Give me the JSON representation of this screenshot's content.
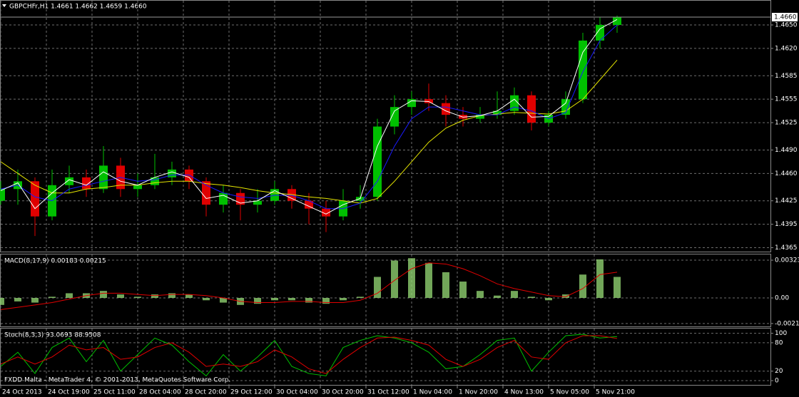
{
  "chart_data": [
    {
      "type": "candlestick",
      "title": "GBPCHFr,H1  1.4661 1.4662 1.4659 1.4660",
      "x": [
        0,
        6,
        12,
        18,
        24,
        30,
        36,
        42,
        48,
        54,
        60,
        66,
        72,
        78,
        84,
        90,
        96,
        102,
        108,
        114,
        120,
        126,
        132,
        138,
        144,
        150,
        156,
        162,
        168,
        174,
        180,
        186,
        192,
        198,
        204,
        210,
        216
      ],
      "candles": [
        [
          1.4425,
          1.445,
          1.442,
          1.444
        ],
        [
          1.444,
          1.4465,
          1.442,
          1.445
        ],
        [
          1.445,
          1.4455,
          1.438,
          1.4405
        ],
        [
          1.4405,
          1.4465,
          1.44,
          1.4445
        ],
        [
          1.4445,
          1.447,
          1.4435,
          1.4455
        ],
        [
          1.4455,
          1.4465,
          1.443,
          1.444
        ],
        [
          1.444,
          1.4495,
          1.4435,
          1.447
        ],
        [
          1.447,
          1.448,
          1.443,
          1.444
        ],
        [
          1.444,
          1.446,
          1.443,
          1.4445
        ],
        [
          1.4445,
          1.4485,
          1.444,
          1.4455
        ],
        [
          1.4455,
          1.4475,
          1.4445,
          1.4465
        ],
        [
          1.4465,
          1.447,
          1.444,
          1.445
        ],
        [
          1.445,
          1.4455,
          1.4405,
          1.442
        ],
        [
          1.442,
          1.4445,
          1.441,
          1.4435
        ],
        [
          1.4435,
          1.444,
          1.44,
          1.442
        ],
        [
          1.442,
          1.444,
          1.441,
          1.4425
        ],
        [
          1.4425,
          1.445,
          1.442,
          1.444
        ],
        [
          1.444,
          1.4445,
          1.4415,
          1.4425
        ],
        [
          1.4425,
          1.4435,
          1.4395,
          1.4415
        ],
        [
          1.4415,
          1.4425,
          1.4385,
          1.4405
        ],
        [
          1.4405,
          1.444,
          1.44,
          1.4425
        ],
        [
          1.4425,
          1.4445,
          1.4415,
          1.443
        ],
        [
          1.443,
          1.453,
          1.4425,
          1.452
        ],
        [
          1.452,
          1.456,
          1.451,
          1.4545
        ],
        [
          1.4545,
          1.4565,
          1.4535,
          1.4555
        ],
        [
          1.4555,
          1.4575,
          1.454,
          1.455
        ],
        [
          1.455,
          1.456,
          1.452,
          1.4535
        ],
        [
          1.4535,
          1.4545,
          1.452,
          1.453
        ],
        [
          1.453,
          1.4545,
          1.4525,
          1.4535
        ],
        [
          1.4535,
          1.4565,
          1.453,
          1.454
        ],
        [
          1.454,
          1.457,
          1.4535,
          1.456
        ],
        [
          1.456,
          1.4565,
          1.4515,
          1.4525
        ],
        [
          1.4525,
          1.454,
          1.452,
          1.4535
        ],
        [
          1.4535,
          1.4565,
          1.453,
          1.4555
        ],
        [
          1.4555,
          1.464,
          1.455,
          1.463
        ],
        [
          1.463,
          1.466,
          1.462,
          1.465
        ],
        [
          1.465,
          1.4662,
          1.464,
          1.466
        ]
      ],
      "up_color": "#00c000",
      "down_color": "#e00000",
      "series": [
        {
          "color": "#e6e600",
          "values": [
            1.4475,
            1.446,
            1.4445,
            1.4435,
            1.4435,
            1.444,
            1.4442,
            1.4445,
            1.4445,
            1.4448,
            1.445,
            1.445,
            1.4447,
            1.4445,
            1.4442,
            1.4438,
            1.4435,
            1.4433,
            1.443,
            1.4428,
            1.4425,
            1.4422,
            1.4428,
            1.445,
            1.4475,
            1.45,
            1.4518,
            1.4528,
            1.4534,
            1.4536,
            1.4538,
            1.4537,
            1.4536,
            1.454,
            1.4555,
            1.458,
            1.4605
          ]
        },
        {
          "color": "#1a1aff",
          "values": [
            1.444,
            1.4445,
            1.443,
            1.4425,
            1.444,
            1.4445,
            1.445,
            1.4455,
            1.445,
            1.4452,
            1.4458,
            1.4458,
            1.4445,
            1.4435,
            1.443,
            1.4428,
            1.4432,
            1.4432,
            1.4425,
            1.4415,
            1.4415,
            1.4422,
            1.445,
            1.4495,
            1.453,
            1.4545,
            1.4545,
            1.454,
            1.4535,
            1.4535,
            1.4545,
            1.454,
            1.453,
            1.4538,
            1.459,
            1.463,
            1.465
          ]
        },
        {
          "color": "#ffffff",
          "values": [
            1.4438,
            1.4448,
            1.4415,
            1.4435,
            1.4452,
            1.4445,
            1.4462,
            1.445,
            1.4445,
            1.4455,
            1.4462,
            1.4455,
            1.4428,
            1.4432,
            1.4422,
            1.4425,
            1.4438,
            1.4428,
            1.4418,
            1.4408,
            1.442,
            1.4428,
            1.4495,
            1.454,
            1.4553,
            1.4552,
            1.454,
            1.4532,
            1.4534,
            1.454,
            1.4555,
            1.4532,
            1.4533,
            1.455,
            1.4615,
            1.4645,
            1.4657
          ]
        }
      ],
      "xlim": [
        0,
        270
      ],
      "ylim": [
        1.436,
        1.4681
      ],
      "yticks": [
        {
          "value": 1.465,
          "label": "1.4650"
        },
        {
          "value": 1.462,
          "label": "1.4620"
        },
        {
          "value": 1.4585,
          "label": "1.4585"
        },
        {
          "value": 1.4555,
          "label": "1.4555"
        },
        {
          "value": 1.4525,
          "label": "1.4525"
        },
        {
          "value": 1.449,
          "label": "1.4490"
        },
        {
          "value": 1.446,
          "label": "1.4460"
        },
        {
          "value": 1.4425,
          "label": "1.4425"
        },
        {
          "value": 1.4395,
          "label": "1.4395"
        },
        {
          "value": 1.4365,
          "label": "1.4365"
        }
      ],
      "xticks": [
        {
          "value": 0,
          "label": "24 Oct 2013"
        },
        {
          "value": 16,
          "label": "24 Oct 19:00"
        },
        {
          "value": 32,
          "label": "25 Oct 11:00"
        },
        {
          "value": 48,
          "label": "28 Oct 04:00"
        },
        {
          "value": 64,
          "label": "28 Oct 20:00"
        },
        {
          "value": 80,
          "label": "29 Oct 12:00"
        },
        {
          "value": 96,
          "label": "30 Oct 04:00"
        },
        {
          "value": 112,
          "label": "30 Oct 20:00"
        },
        {
          "value": 128,
          "label": "31 Oct 12:00"
        },
        {
          "value": 144,
          "label": "1 Nov 04:00"
        },
        {
          "value": 160,
          "label": "1 Nov 20:00"
        },
        {
          "value": 176,
          "label": "4 Nov 13:00"
        },
        {
          "value": 192,
          "label": "5 Nov 05:00"
        },
        {
          "value": 208,
          "label": "5 Nov 21:00"
        }
      ],
      "last_price": {
        "value": 1.466,
        "label": "1.4660"
      },
      "grid": true
    },
    {
      "type": "macd",
      "title": "MACD(8,17,9) 0.00183 0.00215",
      "histogram": {
        "color": "#8fcf6f",
        "values": [
          -0.0006,
          -0.0003,
          -0.0004,
          0.0001,
          0.0004,
          0.0004,
          0.0006,
          0.0003,
          0.0001,
          0.0003,
          0.0004,
          0.0003,
          -0.0002,
          -0.0004,
          -0.0006,
          -0.0005,
          -0.0002,
          -0.0002,
          -0.0004,
          -0.0005,
          -0.0002,
          0.0001,
          0.0018,
          0.0032,
          0.0034,
          0.003,
          0.0022,
          0.0014,
          0.0006,
          0.0002,
          0.0006,
          0.0001,
          -0.0002,
          0.0003,
          0.002,
          0.0033,
          0.0018
        ]
      },
      "signal": {
        "color": "#e00000",
        "values": [
          -0.001,
          -0.0008,
          -0.0006,
          -0.0004,
          -0.0001,
          0.0002,
          0.0004,
          0.0004,
          0.0003,
          0.0002,
          0.0003,
          0.0003,
          0.0002,
          0.0,
          -0.0003,
          -0.0004,
          -0.0004,
          -0.0003,
          -0.0003,
          -0.0004,
          -0.0004,
          -0.0002,
          0.0004,
          0.0015,
          0.0025,
          0.003,
          0.0029,
          0.0025,
          0.0019,
          0.0012,
          0.0008,
          0.0005,
          0.0002,
          0.0001,
          0.0008,
          0.002,
          0.0022
        ]
      },
      "ylim": [
        -0.00244,
        0.00372
      ],
      "yticks": [
        0.00323,
        {
          "value": 0,
          "label": "0.00"
        },
        -0.00219
      ],
      "grid": true
    },
    {
      "type": "stochastic",
      "title": "Stoch(8,3,3) 93.0693 88.9508",
      "main": {
        "color": "#00c000",
        "values": [
          30,
          60,
          15,
          70,
          90,
          40,
          85,
          20,
          55,
          90,
          75,
          40,
          10,
          55,
          20,
          50,
          85,
          30,
          15,
          10,
          70,
          85,
          95,
          90,
          80,
          60,
          25,
          30,
          55,
          85,
          90,
          20,
          60,
          95,
          98,
          90,
          93
        ]
      },
      "signal": {
        "color": "#e00000",
        "values": [
          35,
          50,
          35,
          50,
          75,
          65,
          70,
          45,
          50,
          70,
          80,
          60,
          30,
          35,
          30,
          40,
          65,
          50,
          25,
          15,
          45,
          70,
          90,
          92,
          85,
          75,
          45,
          30,
          45,
          70,
          85,
          50,
          45,
          80,
          95,
          95,
          89
        ]
      },
      "ylim": [
        -9,
        110
      ],
      "yticks": [
        100,
        80,
        20,
        0
      ],
      "grid": true
    }
  ],
  "footer": "FXDD Malta - MetaTrader 4, © 2001-2013, MetaQuotes Software Corp."
}
